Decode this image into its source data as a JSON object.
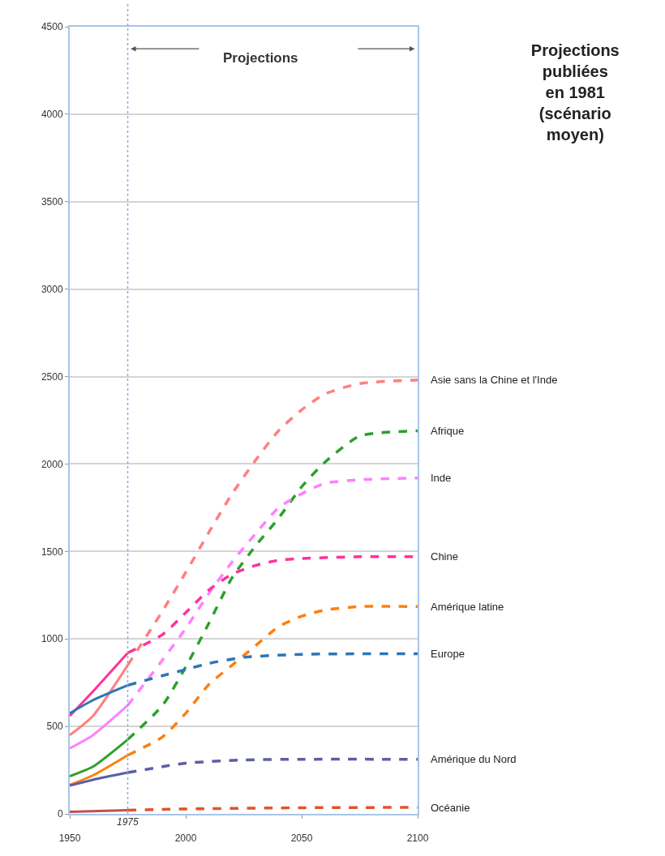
{
  "chart_data": {
    "type": "line",
    "title": "Projections\npubliées\nen 1981\n(scénario\nmoyen)",
    "annotations": [
      "Projections"
    ],
    "xlim": [
      1950,
      2100
    ],
    "xticks": [
      1950,
      2000,
      2050,
      2100
    ],
    "ylim": [
      0,
      4500
    ],
    "yticks": [
      0,
      500,
      1000,
      1500,
      2000,
      2500,
      3000,
      3500,
      4000,
      4500
    ],
    "grid": "y",
    "legend": false,
    "marker": "none",
    "ref_lines": [
      {
        "axis": "x",
        "value": 1975,
        "label": "1975",
        "color": "#8faadc",
        "line_style": "dotted"
      }
    ],
    "series": [
      {
        "color": "#ff7f7f",
        "line_style": "solid",
        "x": [
          1950,
          1960,
          1975
        ],
        "values": [
          450,
          560,
          850
        ]
      },
      {
        "name": "Asie sans la Chine et l'Inde",
        "color": "#ff7f7f",
        "line_style": "dashed",
        "x": [
          1975,
          1990,
          2000,
          2010,
          2020,
          2030,
          2040,
          2050,
          2060,
          2075,
          2100
        ],
        "values": [
          850,
          1160,
          1380,
          1610,
          1830,
          2020,
          2190,
          2310,
          2400,
          2460,
          2480
        ]
      },
      {
        "color": "#2ca02c",
        "line_style": "solid",
        "x": [
          1950,
          1960,
          1975
        ],
        "values": [
          215,
          270,
          425
        ]
      },
      {
        "name": "Afrique",
        "color": "#2ca02c",
        "line_style": "dashed",
        "x": [
          1975,
          1990,
          2000,
          2010,
          2020,
          2030,
          2040,
          2050,
          2060,
          2075,
          2100
        ],
        "values": [
          425,
          620,
          840,
          1090,
          1350,
          1530,
          1690,
          1870,
          2010,
          2160,
          2190
        ]
      },
      {
        "color": "#ff80ff",
        "line_style": "solid",
        "x": [
          1950,
          1960,
          1975
        ],
        "values": [
          375,
          450,
          620
        ]
      },
      {
        "name": "Inde",
        "color": "#ff80ff",
        "line_style": "dashed",
        "x": [
          1975,
          1990,
          2000,
          2010,
          2020,
          2030,
          2040,
          2050,
          2060,
          2075,
          2100
        ],
        "values": [
          620,
          880,
          1060,
          1260,
          1440,
          1600,
          1750,
          1830,
          1890,
          1910,
          1920
        ]
      },
      {
        "color": "#ff3399",
        "line_style": "solid",
        "x": [
          1950,
          1960,
          1975
        ],
        "values": [
          560,
          700,
          920
        ]
      },
      {
        "name": "Chine",
        "color": "#ff3399",
        "line_style": "dashed",
        "x": [
          1975,
          1990,
          2000,
          2010,
          2020,
          2030,
          2040,
          2050,
          2075,
          2100
        ],
        "values": [
          920,
          1025,
          1150,
          1280,
          1370,
          1420,
          1450,
          1460,
          1470,
          1470
        ]
      },
      {
        "color": "#ff7f0e",
        "line_style": "solid",
        "x": [
          1950,
          1960,
          1975
        ],
        "values": [
          165,
          220,
          335
        ]
      },
      {
        "name": "Amérique latine",
        "color": "#ff7f0e",
        "line_style": "dashed",
        "x": [
          1975,
          1990,
          2000,
          2010,
          2020,
          2030,
          2040,
          2050,
          2060,
          2075,
          2100
        ],
        "values": [
          335,
          440,
          575,
          740,
          850,
          960,
          1070,
          1130,
          1165,
          1185,
          1185
        ]
      },
      {
        "color": "#2e75b6",
        "line_style": "solid",
        "x": [
          1950,
          1960,
          1975
        ],
        "values": [
          575,
          650,
          735
        ]
      },
      {
        "name": "Europe",
        "color": "#2e75b6",
        "line_style": "dashed",
        "x": [
          1975,
          1990,
          2000,
          2010,
          2025,
          2050,
          2075,
          2100
        ],
        "values": [
          735,
          790,
          825,
          860,
          895,
          912,
          915,
          915
        ]
      },
      {
        "color": "#5b5ea6",
        "line_style": "solid",
        "x": [
          1950,
          1960,
          1975
        ],
        "values": [
          162,
          195,
          236
        ]
      },
      {
        "name": "Amérique du Nord",
        "color": "#5b5ea6",
        "line_style": "dashed",
        "x": [
          1975,
          1990,
          2000,
          2025,
          2050,
          2100
        ],
        "values": [
          236,
          270,
          290,
          308,
          312,
          312
        ]
      },
      {
        "color": "#c0504d",
        "line_style": "solid",
        "x": [
          1950,
          1975
        ],
        "values": [
          12,
          21
        ]
      },
      {
        "name": "Océanie",
        "color": "#e0542a",
        "line_style": "dashed",
        "x": [
          1975,
          2000,
          2050,
          2100
        ],
        "values": [
          21,
          28,
          35,
          37
        ]
      }
    ]
  }
}
